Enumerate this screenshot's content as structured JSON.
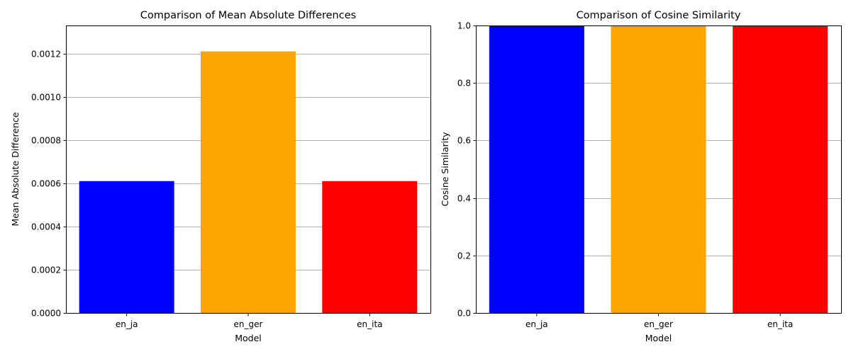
{
  "chart_data": [
    {
      "type": "bar",
      "title": "Comparison of Mean Absolute Differences",
      "xlabel": "Model",
      "ylabel": "Mean Absolute Difference",
      "categories": [
        "en_ja",
        "en_ger",
        "en_ita"
      ],
      "values": [
        0.00061,
        0.00121,
        0.00061
      ],
      "colors": [
        "#0000ff",
        "#ffa500",
        "#ff0000"
      ],
      "ylim": [
        0,
        0.00133
      ],
      "yticks": [
        0,
        0.0002,
        0.0004,
        0.0006,
        0.0008,
        0.001,
        0.0012
      ],
      "ytick_labels": [
        "0.0000",
        "0.0002",
        "0.0004",
        "0.0006",
        "0.0008",
        "0.0010",
        "0.0012"
      ],
      "grid": "y"
    },
    {
      "type": "bar",
      "title": "Comparison of Cosine Similarity",
      "xlabel": "Model",
      "ylabel": "Cosine Similarity",
      "categories": [
        "en_ja",
        "en_ger",
        "en_ita"
      ],
      "values": [
        1.0,
        1.0,
        1.0
      ],
      "colors": [
        "#0000ff",
        "#ffa500",
        "#ff0000"
      ],
      "ylim": [
        0,
        1.0
      ],
      "yticks": [
        0,
        0.2,
        0.4,
        0.6,
        0.8,
        1.0
      ],
      "ytick_labels": [
        "0.0",
        "0.2",
        "0.4",
        "0.6",
        "0.8",
        "1.0"
      ],
      "grid": "y"
    }
  ]
}
